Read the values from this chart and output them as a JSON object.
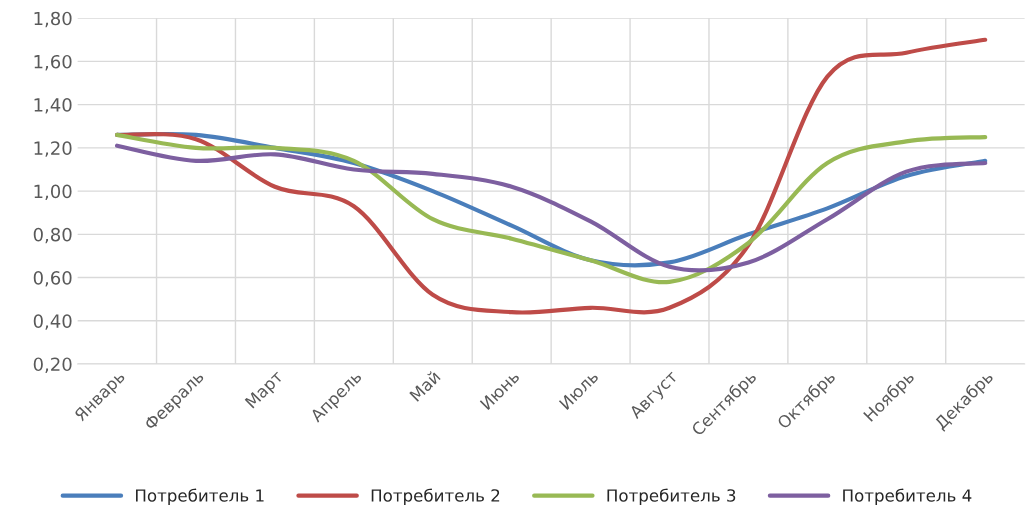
{
  "chart_data": {
    "type": "line",
    "categories": [
      "Январь",
      "Февраль",
      "Март",
      "Апрель",
      "Май",
      "Июнь",
      "Июль",
      "Август",
      "Сентябрь",
      "Октябрь",
      "Ноябрь",
      "Декабрь"
    ],
    "series": [
      {
        "name": "Потребитель 1",
        "color": "#4a7ebb",
        "values": [
          1.26,
          1.26,
          1.2,
          1.13,
          1.0,
          0.84,
          0.68,
          0.67,
          0.8,
          0.92,
          1.07,
          1.14
        ]
      },
      {
        "name": "Потребитель 2",
        "color": "#be4b48",
        "values": [
          1.26,
          1.24,
          1.02,
          0.93,
          0.52,
          0.44,
          0.46,
          0.46,
          0.75,
          1.53,
          1.64,
          1.7
        ]
      },
      {
        "name": "Потребитель 3",
        "color": "#98b954",
        "values": [
          1.26,
          1.2,
          1.2,
          1.14,
          0.87,
          0.78,
          0.68,
          0.58,
          0.76,
          1.13,
          1.23,
          1.25
        ]
      },
      {
        "name": "Потребитель 4",
        "color": "#7d5fa0",
        "values": [
          1.21,
          1.14,
          1.17,
          1.1,
          1.08,
          1.02,
          0.86,
          0.65,
          0.67,
          0.87,
          1.09,
          1.13
        ]
      }
    ],
    "ylim": [
      0.2,
      1.8
    ],
    "yticks": [
      {
        "value": 0.2,
        "label": "0,20"
      },
      {
        "value": 0.4,
        "label": "0,40"
      },
      {
        "value": 0.6,
        "label": "0,60"
      },
      {
        "value": 0.8,
        "label": "0,80"
      },
      {
        "value": 1.0,
        "label": "1,00"
      },
      {
        "value": 1.2,
        "label": "1,20"
      },
      {
        "value": 1.4,
        "label": "1,40"
      },
      {
        "value": 1.6,
        "label": "1,60"
      },
      {
        "value": 1.8,
        "label": "1,80"
      }
    ],
    "grid": true,
    "legend": "bottom",
    "marker": "none",
    "line_style": "solid"
  }
}
